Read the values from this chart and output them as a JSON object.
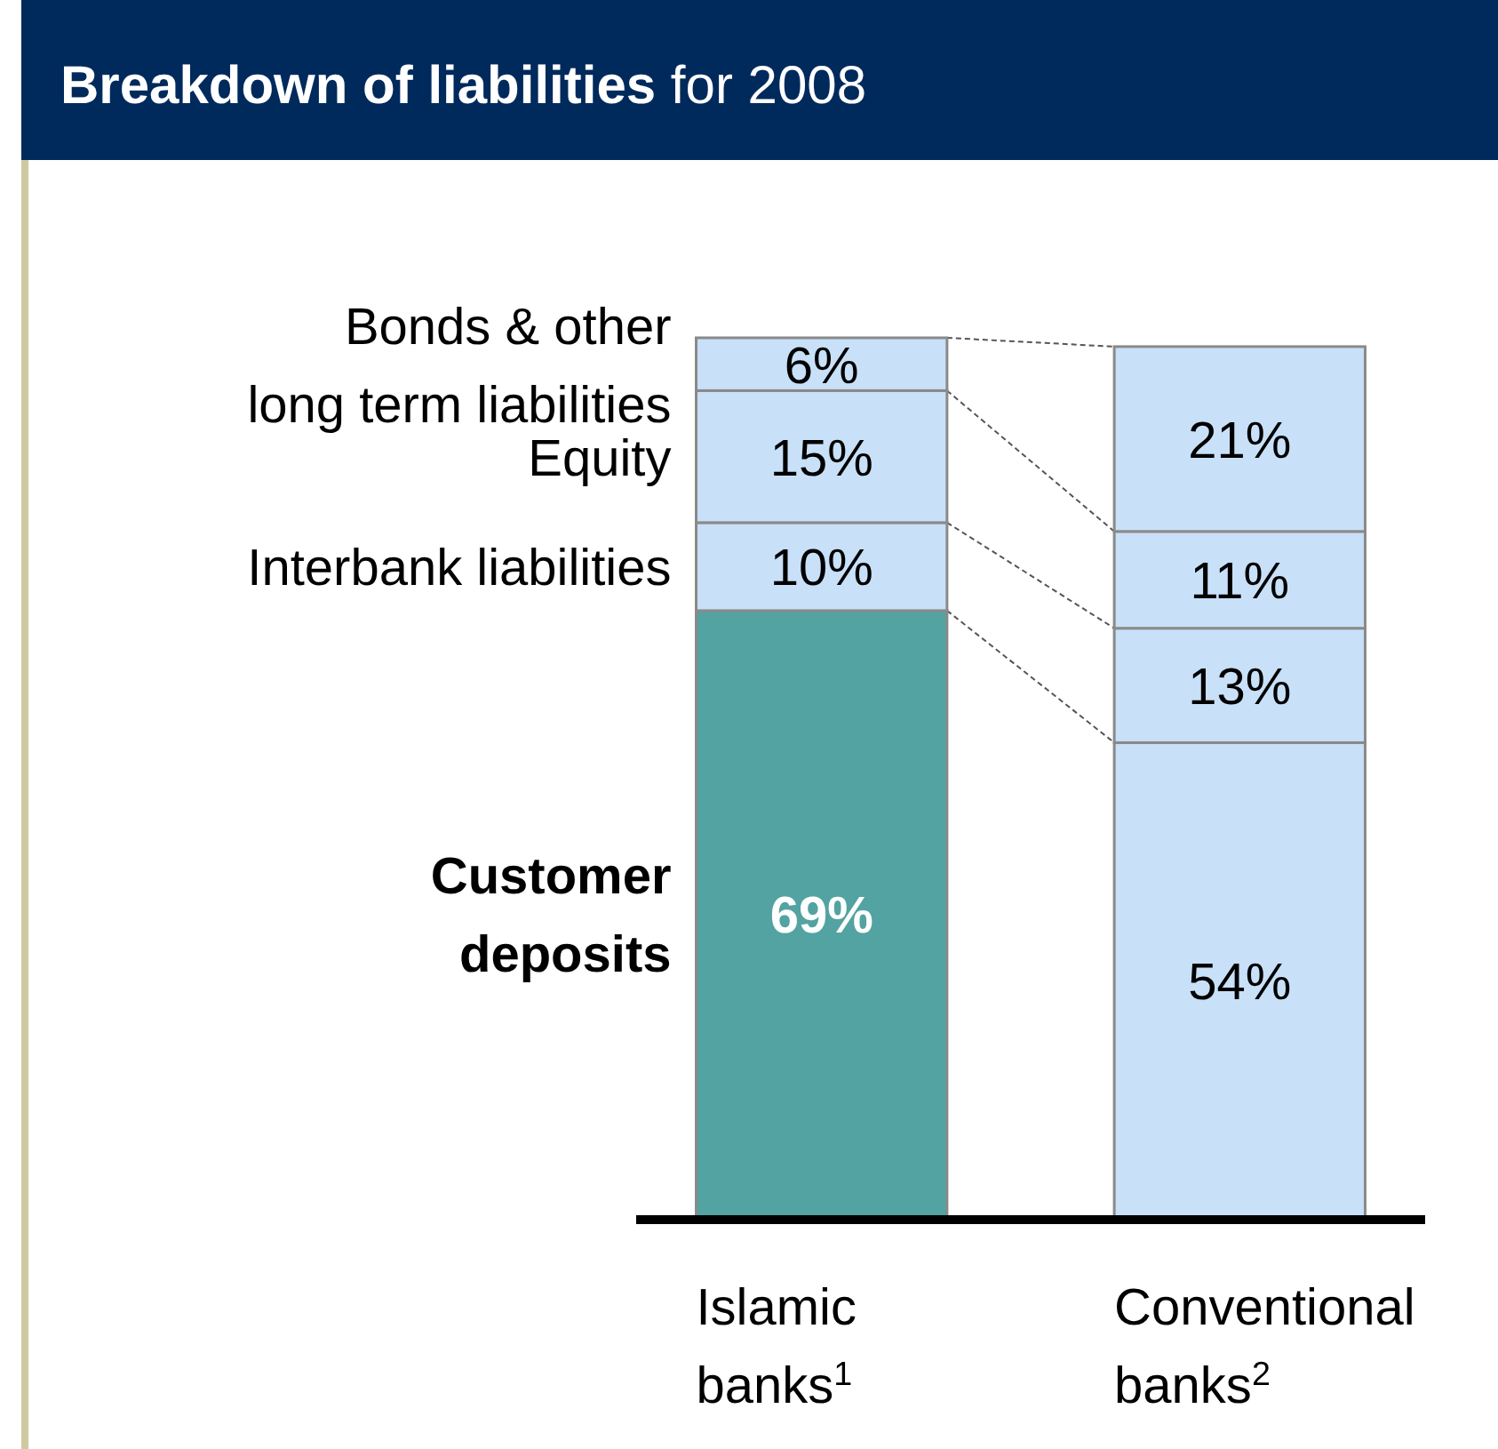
{
  "chart_data": {
    "type": "bar",
    "stacked": true,
    "title": "Breakdown of liabilities",
    "subtitle": "for 2008",
    "legend": "left",
    "categories": [
      "Islamic banks$^{1}$",
      "Conventional banks$^{2}$"
    ],
    "series": [
      {
        "name": "Customer deposits",
        "colors": [
          "#52a3a1",
          "#c8e0f8"
        ],
        "values": [
          69,
          54
        ],
        "value_labels": [
          "69%",
          "54%"
        ]
      },
      {
        "name": "Interbank liabilities",
        "color": "#c8e0f8",
        "values": [
          10,
          13
        ],
        "value_labels": [
          "10%",
          "13%"
        ]
      },
      {
        "name": "Equity",
        "color": "#c8e0f8",
        "values": [
          15,
          11
        ],
        "value_labels": [
          "15%",
          "11%"
        ]
      },
      {
        "name": "Bonds & other long term liabilities",
        "color": "#c8e0f8",
        "values": [
          6,
          21
        ],
        "value_labels": [
          "6%",
          "21%"
        ]
      }
    ]
  }
}
